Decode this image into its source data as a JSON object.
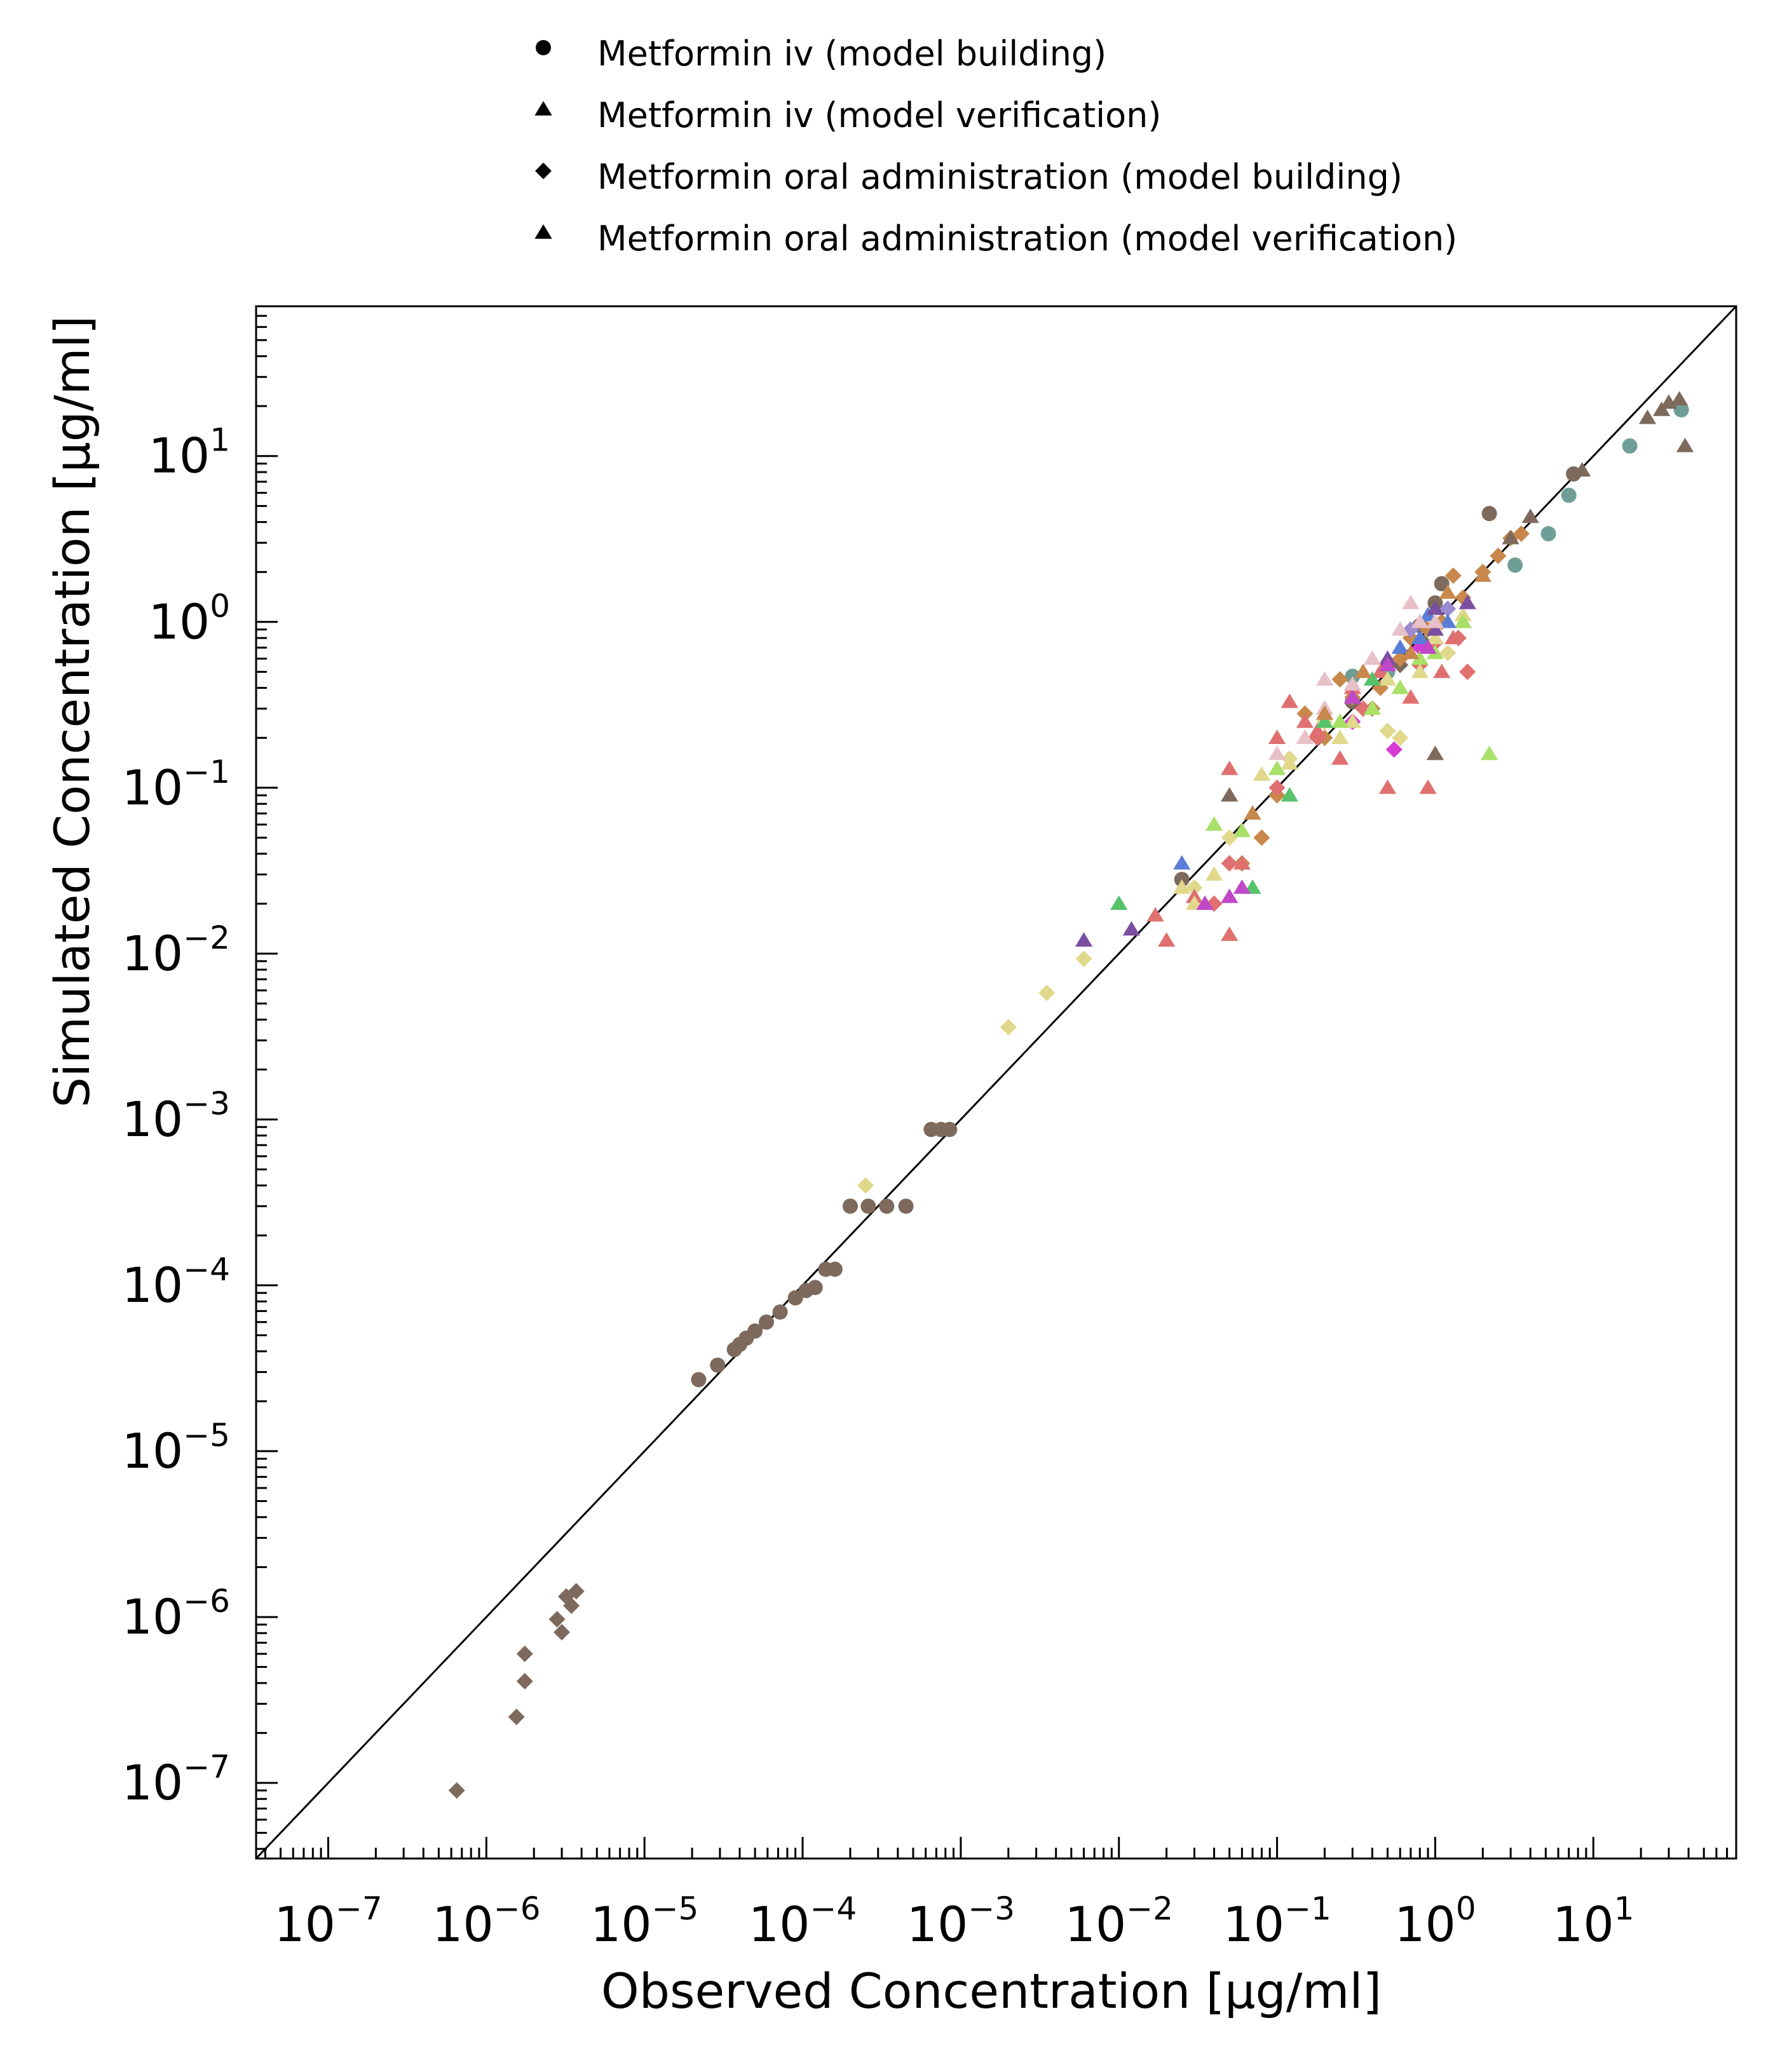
{
  "chart_data": {
    "type": "scatter",
    "xlabel": "Observed Concentration [µg/ml]",
    "ylabel": "Simulated Concentration [µg/ml]",
    "xscale": "log",
    "yscale": "log",
    "xlim": [
      3.5e-08,
      80
    ],
    "ylim": [
      3.5e-08,
      80
    ],
    "grid": false,
    "legend_placement": "top-center",
    "reference_line": "y = x",
    "x_tick_labels": [
      {
        "base": "10",
        "exp": "−7",
        "value": 1e-07
      },
      {
        "base": "10",
        "exp": "−6",
        "value": 1e-06
      },
      {
        "base": "10",
        "exp": "−5",
        "value": 1e-05
      },
      {
        "base": "10",
        "exp": "−4",
        "value": 0.0001
      },
      {
        "base": "10",
        "exp": "−3",
        "value": 0.001
      },
      {
        "base": "10",
        "exp": "−2",
        "value": 0.01
      },
      {
        "base": "10",
        "exp": "−1",
        "value": 0.1
      },
      {
        "base": "10",
        "exp": "0",
        "value": 1
      },
      {
        "base": "10",
        "exp": "1",
        "value": 10
      }
    ],
    "y_tick_labels": [
      {
        "base": "10",
        "exp": "−7",
        "value": 1e-07
      },
      {
        "base": "10",
        "exp": "−6",
        "value": 1e-06
      },
      {
        "base": "10",
        "exp": "−5",
        "value": 1e-05
      },
      {
        "base": "10",
        "exp": "−4",
        "value": 0.0001
      },
      {
        "base": "10",
        "exp": "−3",
        "value": 0.001
      },
      {
        "base": "10",
        "exp": "−2",
        "value": 0.01
      },
      {
        "base": "10",
        "exp": "−1",
        "value": 0.1
      },
      {
        "base": "10",
        "exp": "0",
        "value": 1
      },
      {
        "base": "10",
        "exp": "1",
        "value": 10
      }
    ],
    "legend": [
      {
        "label": "Metformin iv (model building)",
        "marker": "circle"
      },
      {
        "label": "Metformin iv (model verification)",
        "marker": "triangle"
      },
      {
        "label": "Metformin oral administration (model building)",
        "marker": "diamond"
      },
      {
        "label": "Metformin oral administration (model verification)",
        "marker": "triangle"
      }
    ],
    "series": [
      {
        "marker": "circle",
        "color": "#7d6a5d",
        "points": [
          [
            2.2e-05,
            2.7e-05
          ],
          [
            2.9e-05,
            3.3e-05
          ],
          [
            3.7e-05,
            4.1e-05
          ],
          [
            4e-05,
            4.4e-05
          ],
          [
            4.4e-05,
            4.8e-05
          ],
          [
            5e-05,
            5.3e-05
          ],
          [
            5.9e-05,
            6e-05
          ],
          [
            7.2e-05,
            6.9e-05
          ],
          [
            9e-05,
            8.4e-05
          ],
          [
            0.000105,
            9.3e-05
          ],
          [
            0.00012,
            9.7e-05
          ],
          [
            0.00014,
            0.000125
          ],
          [
            0.00016,
            0.000125
          ],
          [
            0.0002,
            0.0003
          ],
          [
            0.00026,
            0.0003
          ],
          [
            0.00034,
            0.0003
          ],
          [
            0.00045,
            0.0003
          ],
          [
            0.00065,
            0.00087
          ],
          [
            0.00075,
            0.00087
          ],
          [
            0.00085,
            0.00087
          ],
          [
            0.025,
            0.028
          ],
          [
            0.3,
            0.33
          ],
          [
            0.5,
            0.55
          ],
          [
            1.1,
            1.7
          ],
          [
            2.2,
            4.5
          ],
          [
            7.5,
            7.8
          ],
          [
            1.0,
            1.3
          ],
          [
            0.8,
            0.95
          ]
        ]
      },
      {
        "marker": "circle",
        "color": "#6f9e96",
        "points": [
          [
            0.3,
            0.47
          ],
          [
            0.5,
            0.5
          ],
          [
            3.2,
            2.2
          ],
          [
            5.2,
            3.4
          ],
          [
            7.0,
            5.8
          ],
          [
            17,
            11.5
          ],
          [
            36,
            19
          ]
        ]
      },
      {
        "marker": "diamond",
        "color": "#7d6a5d",
        "points": [
          [
            6.5e-07,
            9e-08
          ],
          [
            1.55e-06,
            2.5e-07
          ],
          [
            1.75e-06,
            4.1e-07
          ],
          [
            1.75e-06,
            6e-07
          ],
          [
            2.8e-06,
            9.7e-07
          ],
          [
            3e-06,
            8.1e-07
          ],
          [
            3.2e-06,
            1.33e-06
          ],
          [
            3.45e-06,
            1.17e-06
          ],
          [
            3.7e-06,
            1.43e-06
          ],
          [
            0.6,
            0.55
          ],
          [
            0.85,
            0.75
          ]
        ]
      },
      {
        "marker": "diamond",
        "color": "#e0d88a",
        "points": [
          [
            0.002,
            0.0036
          ],
          [
            0.0035,
            0.0058
          ],
          [
            0.006,
            0.0093
          ],
          [
            0.00025,
            0.0004
          ],
          [
            0.03,
            0.025
          ],
          [
            0.05,
            0.05
          ],
          [
            0.12,
            0.15
          ],
          [
            0.2,
            0.25
          ],
          [
            0.6,
            0.2
          ],
          [
            0.5,
            0.22
          ],
          [
            1.2,
            0.65
          ]
        ]
      },
      {
        "marker": "diamond",
        "color": "#c8884c",
        "points": [
          [
            0.08,
            0.05
          ],
          [
            0.06,
            0.035
          ],
          [
            0.1,
            0.09
          ],
          [
            0.2,
            0.2
          ],
          [
            0.3,
            0.35
          ],
          [
            0.45,
            0.4
          ],
          [
            0.6,
            0.6
          ],
          [
            0.9,
            0.9
          ],
          [
            1.5,
            1.4
          ],
          [
            2.0,
            2.0
          ],
          [
            2.5,
            2.5
          ],
          [
            3.0,
            3.2
          ],
          [
            3.5,
            3.4
          ],
          [
            1.3,
            1.9
          ],
          [
            0.7,
            0.8
          ],
          [
            0.4,
            0.3
          ],
          [
            1.1,
            1.0
          ],
          [
            0.25,
            0.45
          ],
          [
            0.15,
            0.28
          ]
        ]
      },
      {
        "marker": "diamond",
        "color": "#e07070",
        "points": [
          [
            0.04,
            0.02
          ],
          [
            0.05,
            0.035
          ],
          [
            0.1,
            0.1
          ],
          [
            0.18,
            0.2
          ],
          [
            0.35,
            0.3
          ],
          [
            0.8,
            0.55
          ],
          [
            1.0,
            0.75
          ],
          [
            1.4,
            0.8
          ],
          [
            1.6,
            0.5
          ]
        ]
      },
      {
        "marker": "diamond",
        "color": "#d63ad6",
        "points": [
          [
            0.55,
            0.17
          ],
          [
            0.3,
            0.25
          ],
          [
            0.8,
            0.7
          ]
        ]
      },
      {
        "marker": "diamond",
        "color": "#9a8ad0",
        "points": [
          [
            0.7,
            0.9
          ],
          [
            1.2,
            1.2
          ]
        ]
      },
      {
        "marker": "triangle",
        "color": "#7d6a5d",
        "points": [
          [
            22,
            17
          ],
          [
            27,
            19
          ],
          [
            30,
            21
          ],
          [
            35,
            22
          ],
          [
            38,
            11.5
          ],
          [
            8.5,
            8.2
          ],
          [
            4.0,
            4.3
          ],
          [
            3.0,
            3.2
          ],
          [
            1.0,
            0.16
          ],
          [
            0.05,
            0.09
          ]
        ]
      },
      {
        "marker": "triangle",
        "color": "#e07070",
        "points": [
          [
            0.017,
            0.017
          ],
          [
            0.02,
            0.012
          ],
          [
            0.03,
            0.022
          ],
          [
            0.05,
            0.013
          ],
          [
            0.06,
            0.035
          ],
          [
            0.1,
            0.2
          ],
          [
            0.15,
            0.25
          ],
          [
            0.2,
            0.3
          ],
          [
            0.3,
            0.4
          ],
          [
            0.5,
            0.1
          ],
          [
            0.7,
            0.35
          ],
          [
            0.9,
            0.1
          ],
          [
            1.1,
            0.5
          ],
          [
            1.3,
            0.8
          ],
          [
            0.25,
            0.15
          ],
          [
            0.18,
            0.22
          ],
          [
            0.45,
            0.5
          ],
          [
            0.05,
            0.13
          ],
          [
            0.12,
            0.33
          ]
        ]
      },
      {
        "marker": "triangle",
        "color": "#e0d88a",
        "points": [
          [
            0.025,
            0.025
          ],
          [
            0.03,
            0.02
          ],
          [
            0.04,
            0.03
          ],
          [
            0.08,
            0.12
          ],
          [
            0.12,
            0.14
          ],
          [
            0.25,
            0.2
          ],
          [
            0.3,
            0.25
          ],
          [
            0.4,
            0.3
          ],
          [
            0.5,
            0.45
          ],
          [
            0.8,
            0.5
          ],
          [
            1.0,
            0.8
          ],
          [
            1.5,
            1.1
          ]
        ]
      },
      {
        "marker": "triangle",
        "color": "#a8e068",
        "points": [
          [
            0.04,
            0.06
          ],
          [
            0.06,
            0.055
          ],
          [
            0.1,
            0.13
          ],
          [
            0.15,
            0.2
          ],
          [
            0.25,
            0.25
          ],
          [
            0.4,
            0.3
          ],
          [
            0.6,
            0.4
          ],
          [
            0.8,
            0.6
          ],
          [
            1.0,
            0.65
          ],
          [
            1.5,
            1.0
          ],
          [
            2.2,
            0.16
          ]
        ]
      },
      {
        "marker": "triangle",
        "color": "#56c26a",
        "points": [
          [
            0.01,
            0.02
          ],
          [
            0.07,
            0.025
          ],
          [
            0.12,
            0.09
          ],
          [
            0.2,
            0.25
          ],
          [
            0.4,
            0.45
          ]
        ]
      },
      {
        "marker": "triangle",
        "color": "#5a7ed8",
        "points": [
          [
            0.025,
            0.035
          ],
          [
            0.6,
            0.7
          ],
          [
            0.9,
            1.1
          ],
          [
            1.2,
            1.0
          ],
          [
            0.8,
            0.8
          ]
        ]
      },
      {
        "marker": "triangle",
        "color": "#7a4ea0",
        "points": [
          [
            0.006,
            0.012
          ],
          [
            0.012,
            0.014
          ],
          [
            0.5,
            0.6
          ],
          [
            1.0,
            0.9
          ],
          [
            1.6,
            1.3
          ],
          [
            1.0,
            1.2
          ]
        ]
      },
      {
        "marker": "triangle",
        "color": "#c048c8",
        "points": [
          [
            0.035,
            0.02
          ],
          [
            0.05,
            0.022
          ],
          [
            0.06,
            0.025
          ],
          [
            0.3,
            0.35
          ],
          [
            0.5,
            0.55
          ],
          [
            0.9,
            0.7
          ]
        ]
      },
      {
        "marker": "triangle",
        "color": "#e8c0c8",
        "points": [
          [
            0.1,
            0.16
          ],
          [
            0.15,
            0.2
          ],
          [
            0.3,
            0.42
          ],
          [
            0.6,
            0.9
          ],
          [
            0.8,
            1.0
          ],
          [
            1.0,
            1.0
          ],
          [
            0.2,
            0.3
          ],
          [
            0.4,
            0.6
          ],
          [
            0.7,
            1.3
          ],
          [
            0.2,
            0.45
          ]
        ]
      },
      {
        "marker": "triangle",
        "color": "#c8884c",
        "points": [
          [
            0.07,
            0.07
          ],
          [
            0.2,
            0.28
          ],
          [
            0.35,
            0.5
          ],
          [
            0.7,
            0.65
          ],
          [
            1.2,
            1.5
          ],
          [
            2.0,
            1.9
          ]
        ]
      }
    ]
  }
}
